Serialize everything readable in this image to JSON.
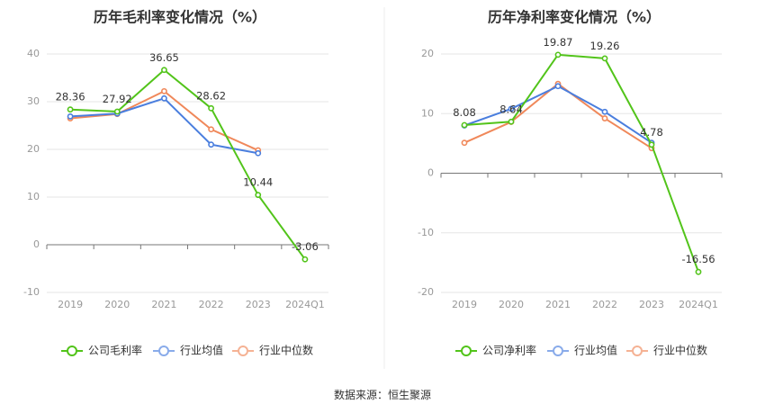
{
  "source": "数据来源：恒生聚源",
  "chart_data": [
    {
      "type": "line",
      "title": "历年毛利率变化情况（%）",
      "categories": [
        "2019",
        "2020",
        "2021",
        "2022",
        "2023",
        "2024Q1"
      ],
      "ylim": [
        -10,
        40
      ],
      "yticks": [
        40,
        30,
        20,
        10,
        0,
        -10
      ],
      "grid": true,
      "legend_position": "bottom",
      "series": [
        {
          "name": "公司毛利率",
          "color": "#52c41a",
          "values": [
            28.36,
            27.92,
            36.65,
            28.62,
            10.44,
            -3.06
          ],
          "labels": [
            "28.36",
            "27.92",
            "36.65",
            "28.62",
            "10.44",
            "-3.06"
          ]
        },
        {
          "name": "行业均值",
          "color": "#4a7ede",
          "values": [
            26.9,
            27.5,
            30.7,
            21.0,
            19.2,
            null
          ]
        },
        {
          "name": "行业中位数",
          "color": "#f0885a",
          "values": [
            26.5,
            27.4,
            32.2,
            24.2,
            19.8,
            null
          ]
        }
      ]
    },
    {
      "type": "line",
      "title": "历年净利率变化情况（%）",
      "categories": [
        "2019",
        "2020",
        "2021",
        "2022",
        "2023",
        "2024Q1"
      ],
      "ylim": [
        -20,
        20
      ],
      "yticks": [
        20,
        10,
        0,
        -10,
        -20
      ],
      "grid": true,
      "legend_position": "bottom",
      "series": [
        {
          "name": "公司净利率",
          "color": "#52c41a",
          "values": [
            8.08,
            8.64,
            19.87,
            19.26,
            4.78,
            -16.56
          ],
          "labels": [
            "8.08",
            "8.64",
            "19.87",
            "19.26",
            "4.78",
            "-16.56"
          ]
        },
        {
          "name": "行业均值",
          "color": "#4a7ede",
          "values": [
            8.0,
            10.8,
            14.6,
            10.3,
            5.1,
            null
          ]
        },
        {
          "name": "行业中位数",
          "color": "#f0885a",
          "values": [
            5.1,
            8.6,
            15.0,
            9.2,
            4.2,
            null
          ]
        }
      ]
    }
  ]
}
